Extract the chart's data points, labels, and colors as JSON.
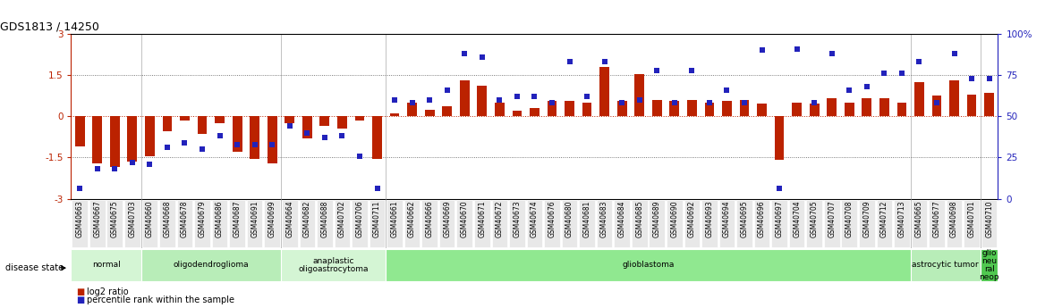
{
  "title": "GDS1813 / 14250",
  "samples": [
    "GSM40663",
    "GSM40667",
    "GSM40675",
    "GSM40703",
    "GSM40660",
    "GSM40668",
    "GSM40678",
    "GSM40679",
    "GSM40686",
    "GSM40687",
    "GSM40691",
    "GSM40699",
    "GSM40664",
    "GSM40682",
    "GSM40688",
    "GSM40702",
    "GSM40706",
    "GSM40711",
    "GSM40661",
    "GSM40662",
    "GSM40666",
    "GSM40669",
    "GSM40670",
    "GSM40671",
    "GSM40672",
    "GSM40673",
    "GSM40674",
    "GSM40676",
    "GSM40680",
    "GSM40681",
    "GSM40683",
    "GSM40684",
    "GSM40685",
    "GSM40689",
    "GSM40690",
    "GSM40692",
    "GSM40693",
    "GSM40694",
    "GSM40695",
    "GSM40696",
    "GSM40697",
    "GSM40704",
    "GSM40705",
    "GSM40707",
    "GSM40708",
    "GSM40709",
    "GSM40712",
    "GSM40713",
    "GSM40665",
    "GSM40677",
    "GSM40698",
    "GSM40701",
    "GSM40710"
  ],
  "log2_ratio": [
    -1.1,
    -1.7,
    -1.85,
    -1.65,
    -1.45,
    -0.55,
    -0.15,
    -0.65,
    -0.25,
    -1.3,
    -1.55,
    -1.7,
    -0.25,
    -0.8,
    -0.35,
    -0.45,
    -0.15,
    -1.55,
    0.1,
    0.5,
    0.25,
    0.35,
    1.3,
    1.1,
    0.5,
    0.2,
    0.3,
    0.55,
    0.55,
    0.5,
    1.8,
    0.55,
    1.55,
    0.6,
    0.55,
    0.6,
    0.5,
    0.55,
    0.6,
    0.45,
    -1.6,
    0.5,
    0.45,
    0.65,
    0.5,
    0.65,
    0.65,
    0.5,
    1.25,
    0.75,
    1.3,
    0.8,
    0.85
  ],
  "percentile": [
    6,
    18,
    18,
    22,
    21,
    31,
    34,
    30,
    38,
    33,
    33,
    33,
    44,
    40,
    37,
    38,
    26,
    6,
    60,
    58,
    60,
    66,
    88,
    86,
    60,
    62,
    62,
    58,
    83,
    62,
    83,
    58,
    60,
    78,
    58,
    78,
    58,
    66,
    58,
    90,
    6,
    91,
    58,
    88,
    66,
    68,
    76,
    76,
    83,
    58,
    88,
    73,
    73
  ],
  "disease_groups": [
    {
      "label": "normal",
      "start": 0,
      "end": 4,
      "color": "#d4f5d4"
    },
    {
      "label": "oligodendroglioma",
      "start": 4,
      "end": 12,
      "color": "#b8edb8"
    },
    {
      "label": "anaplastic\noligoastrocytoma",
      "start": 12,
      "end": 18,
      "color": "#d4f5d4"
    },
    {
      "label": "glioblastoma",
      "start": 18,
      "end": 48,
      "color": "#90e890"
    },
    {
      "label": "astrocytic tumor",
      "start": 48,
      "end": 52,
      "color": "#b8edb8"
    },
    {
      "label": "glio\nneu\nral\nneop",
      "start": 52,
      "end": 53,
      "color": "#50c850"
    }
  ],
  "bar_color": "#bb2200",
  "dot_color": "#2222bb",
  "ylim_left": [
    -3,
    3
  ],
  "ylim_right": [
    0,
    100
  ],
  "yticks_left": [
    -3,
    -1.5,
    0,
    1.5,
    3
  ],
  "yticks_right": [
    0,
    25,
    50,
    75,
    100
  ],
  "hlines_dotted": [
    -1.5,
    1.5
  ],
  "bg_color": "#ffffff"
}
